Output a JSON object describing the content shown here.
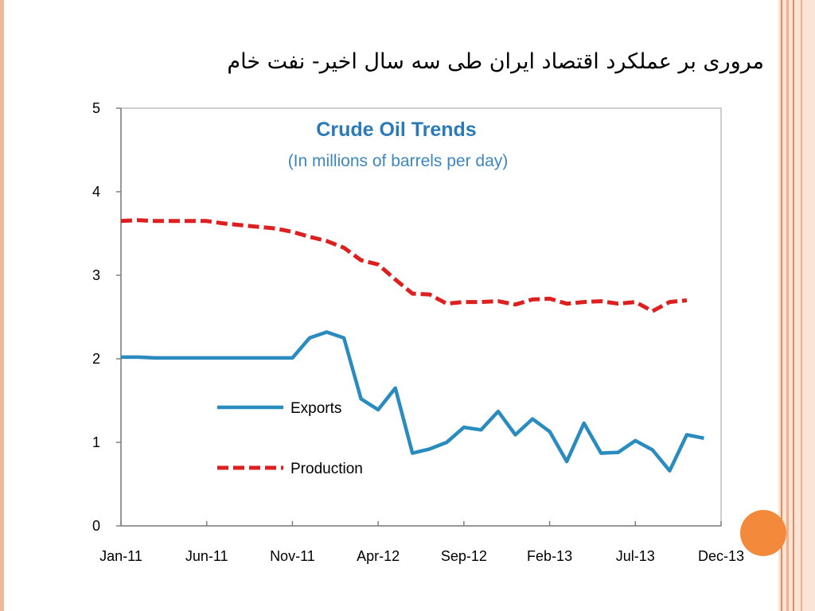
{
  "slide": {
    "title": "مروری بر عملکرد اقتصاد ایران طی سه سال اخیر- نفت خام",
    "accent_color": "#f2893b"
  },
  "chart_data": {
    "type": "line",
    "title": "Crude Oil Trends",
    "subtitle": "(In millions of barrels per day)",
    "xlabel": "",
    "ylabel": "",
    "x": [
      "Jan-11",
      "Feb-11",
      "Mar-11",
      "Apr-11",
      "May-11",
      "Jun-11",
      "Jul-11",
      "Aug-11",
      "Sep-11",
      "Oct-11",
      "Nov-11",
      "Dec-11",
      "Jan-12",
      "Feb-12",
      "Mar-12",
      "Apr-12",
      "May-12",
      "Jun-12",
      "Jul-12",
      "Aug-12",
      "Sep-12",
      "Oct-12",
      "Nov-12",
      "Dec-12",
      "Jan-13",
      "Feb-13",
      "Mar-13",
      "Apr-13",
      "May-13",
      "Jun-13",
      "Jul-13",
      "Aug-13",
      "Sep-13",
      "Oct-13",
      "Nov-13",
      "Dec-13"
    ],
    "x_tick_labels": [
      "Jan-11",
      "Jun-11",
      "Nov-11",
      "Apr-12",
      "Sep-12",
      "Feb-13",
      "Jul-13",
      "Dec-13"
    ],
    "ylim": [
      0,
      5
    ],
    "y_ticks": [
      0,
      1,
      2,
      3,
      4,
      5
    ],
    "grid": false,
    "legend_position": "lower-left",
    "series": [
      {
        "name": "Exports",
        "color": "#2a8bbf",
        "style": "solid",
        "values": [
          2.02,
          2.02,
          2.01,
          2.01,
          2.01,
          2.01,
          2.01,
          2.01,
          2.01,
          2.01,
          2.01,
          2.25,
          2.32,
          2.25,
          1.52,
          1.39,
          1.65,
          0.87,
          0.92,
          1.0,
          1.18,
          1.15,
          1.37,
          1.09,
          1.28,
          1.13,
          0.77,
          1.23,
          0.87,
          0.88,
          1.02,
          0.91,
          0.66,
          1.09,
          1.05,
          null
        ]
      },
      {
        "name": "Production",
        "color": "#dd1f1f",
        "style": "dashed",
        "values": [
          3.65,
          3.66,
          3.65,
          3.65,
          3.65,
          3.65,
          3.62,
          3.6,
          3.58,
          3.56,
          3.52,
          3.46,
          3.41,
          3.33,
          3.18,
          3.13,
          2.95,
          2.78,
          2.77,
          2.66,
          2.68,
          2.68,
          2.69,
          2.65,
          2.71,
          2.72,
          2.66,
          2.68,
          2.69,
          2.66,
          2.68,
          2.57,
          2.68,
          2.7,
          null,
          null
        ]
      }
    ]
  }
}
